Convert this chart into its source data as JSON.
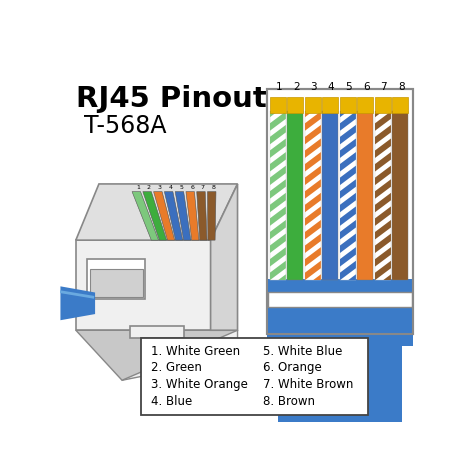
{
  "title_line1": "RJ45 Pinout",
  "title_line2": "T-568A",
  "bg_color": "#ffffff",
  "cable_color": "#3B7BC8",
  "connector_color": "#f0f0f0",
  "connector_border": "#888888",
  "gold_color": "#E8B400",
  "gold_border": "#C89800",
  "wire_main": [
    "#7DC87D",
    "#3DAD3D",
    "#E87B2A",
    "#3B6FBE",
    "#3B6FBE",
    "#E87B2A",
    "#8B5A2B",
    "#8B5A2B"
  ],
  "wire_stripe_color": [
    "#3DAD3D",
    null,
    "#E87B2A",
    null,
    "#3B6FBE",
    null,
    "#8B5A2B",
    null
  ],
  "wire_is_striped": [
    true,
    false,
    true,
    false,
    true,
    false,
    true,
    false
  ],
  "legend_items_left": [
    "1. White Green",
    "2. Green",
    "3. White Orange",
    "4. Blue"
  ],
  "legend_items_right": [
    "5. White Blue",
    "6. Orange",
    "7. White Brown",
    "8. Brown"
  ]
}
